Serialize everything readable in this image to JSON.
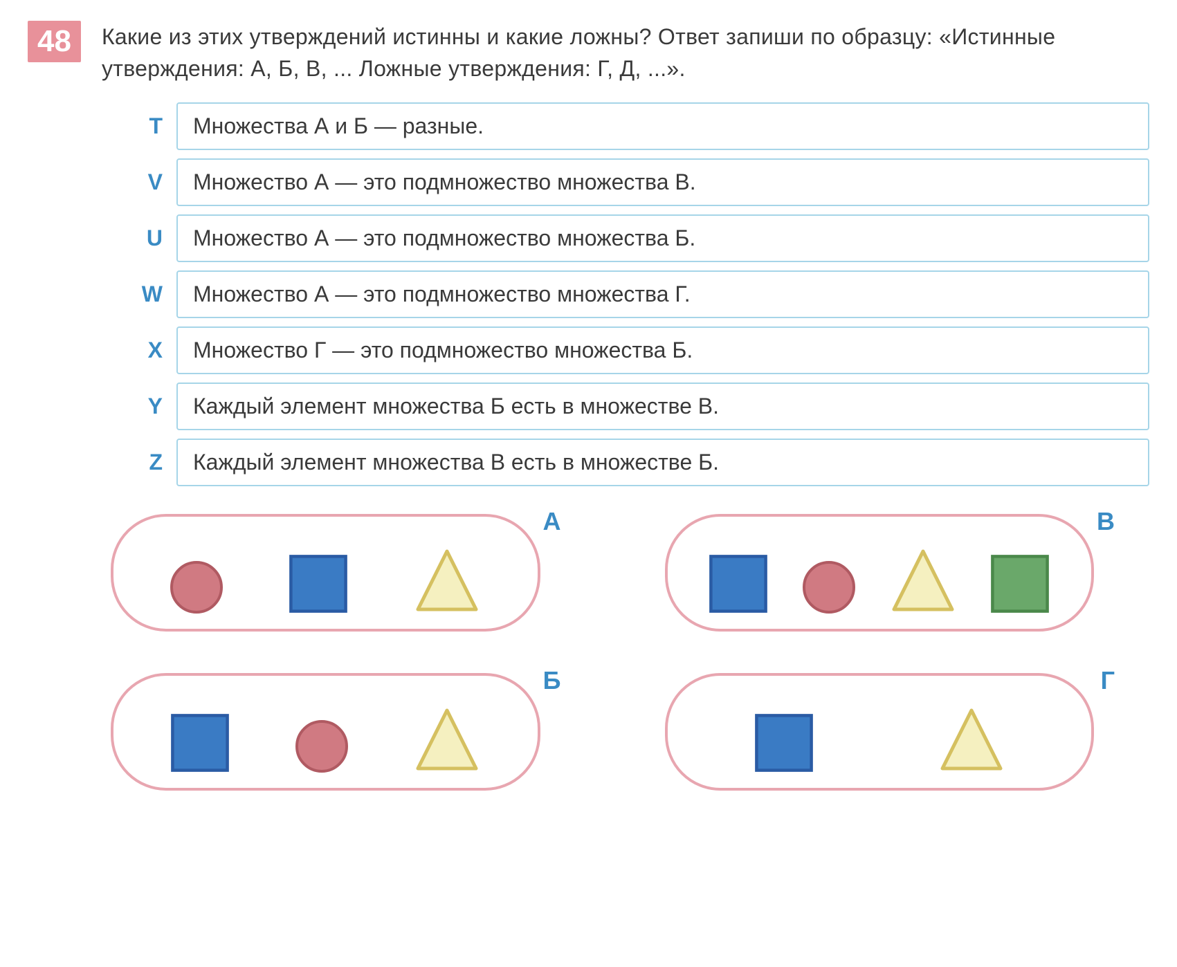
{
  "problem_number": "48",
  "question": "Какие из этих утверждений истинны и какие ложны? Ответ запиши по образцу: «Истинные утверждения: А, Б, В, ... Ложные утверждения: Г, Д, ...».",
  "statements": [
    {
      "letter": "T",
      "text": "Множества А и Б — разные."
    },
    {
      "letter": "V",
      "text": "Множество А — это подмножество множества В."
    },
    {
      "letter": "U",
      "text": "Множество А — это подмножество множества Б."
    },
    {
      "letter": "W",
      "text": "Множество А — это подмножество множества Г."
    },
    {
      "letter": "X",
      "text": "Множество Г — это подмножество множества Б."
    },
    {
      "letter": "Y",
      "text": "Каждый элемент множества Б есть в множестве В."
    },
    {
      "letter": "Z",
      "text": "Каждый элемент множества В есть в множестве Б."
    }
  ],
  "colors": {
    "problem_badge_bg": "#e8919a",
    "problem_badge_text": "#ffffff",
    "text_color": "#3a3a3a",
    "letter_color": "#3a8bc4",
    "statement_border": "#a6d5e8",
    "set_border": "#e8a6b0",
    "circle_fill": "#d07a82",
    "circle_stroke": "#b05a62",
    "blue_square_fill": "#3a7bc4",
    "blue_square_stroke": "#2a5ba4",
    "green_square_fill": "#6aa86a",
    "green_square_stroke": "#4a884a",
    "triangle_fill": "#f5f0c0",
    "triangle_stroke": "#d5c060"
  },
  "sets": [
    {
      "label": "А",
      "shapes": [
        {
          "type": "circle",
          "fill": "#d07a82",
          "stroke": "#b05a62",
          "size": 80
        },
        {
          "type": "square",
          "fill": "#3a7bc4",
          "stroke": "#2a5ba4",
          "size": 90
        },
        {
          "type": "triangle",
          "fill": "#f5f0c0",
          "stroke": "#d5c060",
          "size": 100
        }
      ]
    },
    {
      "label": "В",
      "shapes": [
        {
          "type": "square",
          "fill": "#3a7bc4",
          "stroke": "#2a5ba4",
          "size": 90
        },
        {
          "type": "circle",
          "fill": "#d07a82",
          "stroke": "#b05a62",
          "size": 80
        },
        {
          "type": "triangle",
          "fill": "#f5f0c0",
          "stroke": "#d5c060",
          "size": 100
        },
        {
          "type": "square",
          "fill": "#6aa86a",
          "stroke": "#4a884a",
          "size": 90
        }
      ]
    },
    {
      "label": "Б",
      "shapes": [
        {
          "type": "square",
          "fill": "#3a7bc4",
          "stroke": "#2a5ba4",
          "size": 90
        },
        {
          "type": "circle",
          "fill": "#d07a82",
          "stroke": "#b05a62",
          "size": 80
        },
        {
          "type": "triangle",
          "fill": "#f5f0c0",
          "stroke": "#d5c060",
          "size": 100
        }
      ]
    },
    {
      "label": "Г",
      "shapes": [
        {
          "type": "square",
          "fill": "#3a7bc4",
          "stroke": "#2a5ba4",
          "size": 90
        },
        {
          "type": "triangle",
          "fill": "#f5f0c0",
          "stroke": "#d5c060",
          "size": 100
        }
      ]
    }
  ]
}
